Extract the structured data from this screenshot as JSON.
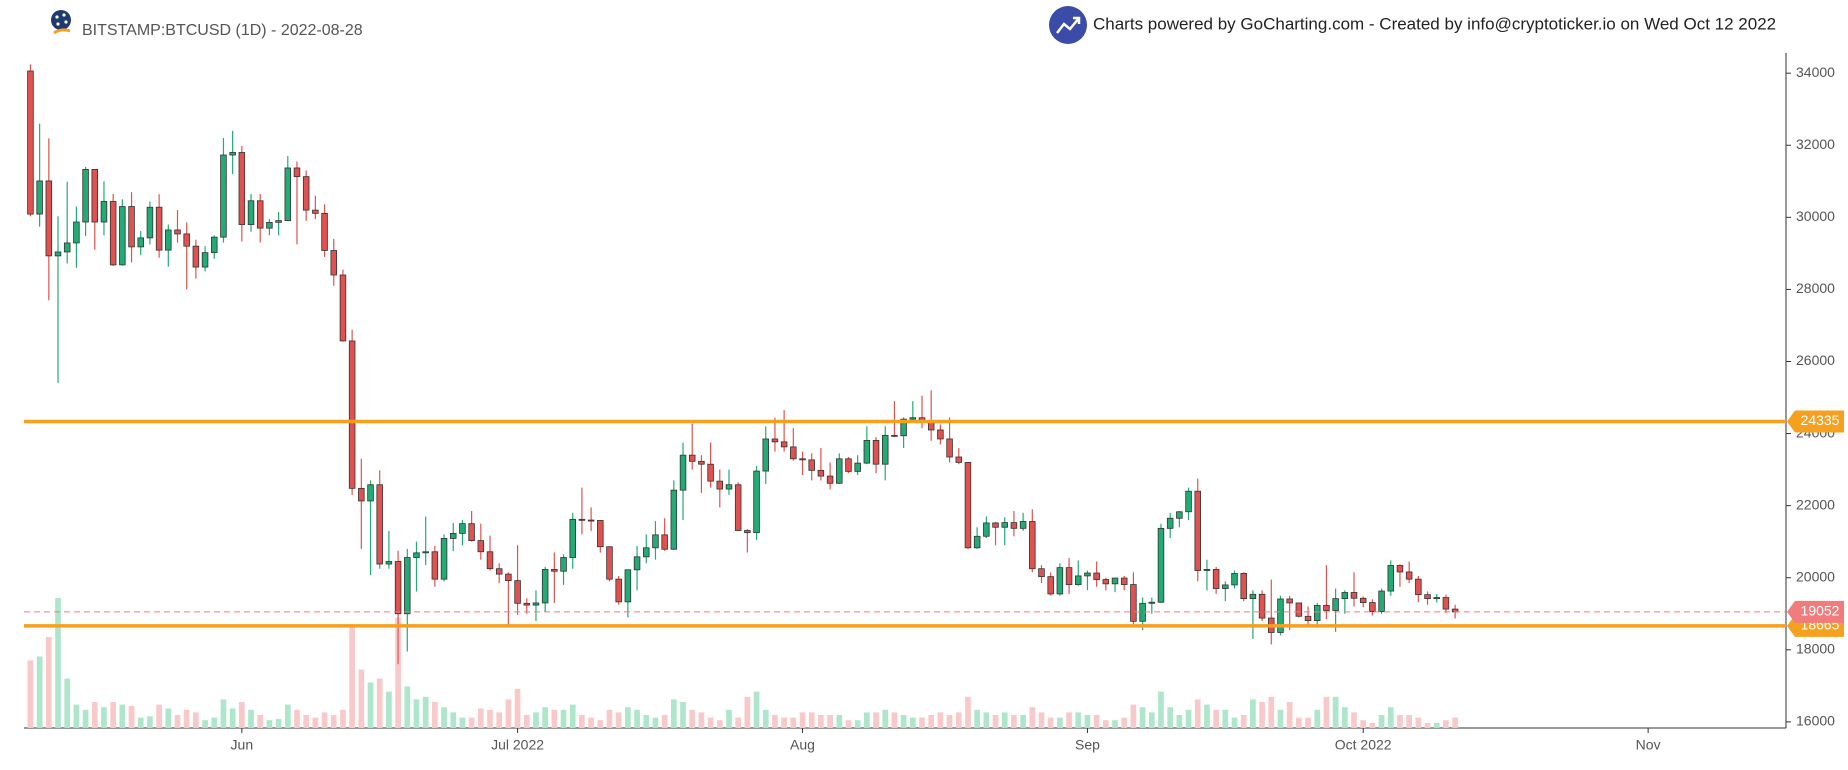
{
  "chart_data": {
    "type": "candlestick",
    "title": "BITSTAMP:BTCUSD (1D) - 2022-08-28",
    "subtitle": "Charts powered by GoCharting.com - Created by info@cryptoticker.io on Wed Oct 12 2022",
    "up_color": "#22ab74",
    "down_color": "#e0524f",
    "volume_up_color": "#aee6cc",
    "volume_down_color": "#f9c9c9",
    "xlim": [
      -0.7,
      191
    ],
    "xticks": [
      {
        "value": 23,
        "label": "Jun"
      },
      {
        "value": 53,
        "label": "Jul 2022"
      },
      {
        "value": 84,
        "label": "Aug"
      },
      {
        "value": 115,
        "label": "Sep"
      },
      {
        "value": 145,
        "label": "Oct 2022"
      },
      {
        "value": 176,
        "label": "Nov"
      }
    ],
    "ylim": [
      15830,
      34560
    ],
    "yticks": [
      16000,
      18000,
      20000,
      22000,
      24000,
      26000,
      28000,
      30000,
      32000,
      34000
    ],
    "hlines": [
      {
        "value": 24335,
        "color": "#f5a01f",
        "style": "solid"
      },
      {
        "value": 18665,
        "color": "#f5a01f",
        "style": "solid"
      },
      {
        "value": 19052,
        "color": "#f07c7c",
        "style": "dashed"
      }
    ],
    "open": [
      34060,
      30090,
      31010,
      28930,
      29040,
      29290,
      29870,
      31330,
      29870,
      30440,
      28680,
      30300,
      29180,
      29430,
      30280,
      29090,
      29650,
      29540,
      29200,
      28620,
      29020,
      29450,
      31730,
      31800,
      29800,
      30460,
      29700,
      29860,
      29910,
      31370,
      31130,
      30200,
      30110,
      29080,
      28400,
      26570,
      22480,
      22130,
      22580,
      20380,
      20450,
      19000,
      20560,
      20690,
      20720,
      19960,
      21090,
      21230,
      21500,
      21030,
      20720,
      20250,
      20100,
      19920,
      19290,
      19240,
      19300,
      20230,
      20180,
      20560,
      21620,
      21600,
      21590,
      20860,
      19960,
      19330,
      20220,
      20580,
      20830,
      21190,
      20790,
      22430,
      23400,
      23230,
      23150,
      22680,
      22460,
      22580,
      21310,
      21250,
      22960,
      23850,
      23770,
      23630,
      23300,
      23270,
      22980,
      22820,
      22620,
      23300,
      22950,
      23180,
      23810,
      23150,
      23950,
      23940,
      24400,
      24440,
      24310,
      24100,
      23850,
      23350,
      23200,
      20830,
      21150,
      21520,
      21400,
      21530,
      21370,
      21560,
      20250,
      20030,
      19550,
      20280,
      19810,
      20050,
      20130,
      19950,
      19830,
      19990,
      19810,
      18790,
      19290,
      19320,
      21370,
      21650,
      21830,
      22400,
      20200,
      20230,
      19700,
      19800,
      20120,
      19420,
      19540,
      18880,
      18480,
      19410,
      19300,
      18930,
      18810,
      19230,
      19090,
      19420,
      19590,
      19430,
      19310,
      19060,
      19630,
      20340,
      20160,
      19960,
      19530,
      19420,
      19450,
      19130
    ],
    "high": [
      34240,
      32600,
      32190,
      30030,
      30990,
      30300,
      31400,
      31330,
      31000,
      30650,
      30500,
      30700,
      29620,
      30440,
      30640,
      29800,
      30200,
      29860,
      29380,
      29200,
      29500,
      32200,
      32400,
      31980,
      30650,
      30650,
      29950,
      30150,
      31700,
      31550,
      31300,
      30600,
      30360,
      29400,
      28550,
      26880,
      23300,
      22700,
      22980,
      21300,
      20750,
      20800,
      21000,
      21700,
      20880,
      21200,
      21520,
      21600,
      21850,
      21500,
      21170,
      20400,
      20150,
      20900,
      19430,
      19650,
      20300,
      20700,
      20650,
      21800,
      22500,
      21950,
      21600,
      20870,
      20050,
      20230,
      20880,
      21200,
      21570,
      21650,
      22700,
      23750,
      24270,
      23400,
      23750,
      23000,
      23000,
      22650,
      21350,
      23100,
      24200,
      24440,
      24650,
      24150,
      23500,
      23450,
      23600,
      23200,
      23450,
      23350,
      23400,
      24200,
      23900,
      24200,
      24900,
      24450,
      24900,
      25050,
      25200,
      24250,
      24450,
      23600,
      23200,
      21400,
      21700,
      21550,
      21680,
      21850,
      21800,
      21900,
      20350,
      20150,
      20400,
      20550,
      20480,
      20200,
      20450,
      20000,
      20000,
      20050,
      20150,
      19450,
      19450,
      21500,
      21800,
      21850,
      22500,
      22750,
      20500,
      20300,
      19900,
      20200,
      20150,
      19650,
      19650,
      19950,
      19500,
      19500,
      19300,
      19200,
      19300,
      20350,
      19700,
      19650,
      20150,
      19480,
      19400,
      19700,
      20480,
      20370,
      20450,
      20050,
      19620,
      19550,
      19530,
      19250
    ],
    "low": [
      30030,
      29740,
      27700,
      25400,
      28720,
      28600,
      29480,
      29100,
      29500,
      28650,
      28660,
      28750,
      28950,
      29250,
      28880,
      28630,
      29300,
      28000,
      28300,
      28500,
      28850,
      29300,
      31200,
      29330,
      29600,
      29300,
      29500,
      29500,
      29900,
      29250,
      29900,
      29950,
      28900,
      28100,
      26550,
      22300,
      20800,
      20070,
      20250,
      20250,
      17600,
      17950,
      19620,
      20350,
      19750,
      19900,
      20740,
      20900,
      21000,
      20500,
      20200,
      19850,
      18650,
      18970,
      19000,
      18800,
      19050,
      19300,
      19800,
      20250,
      21200,
      21300,
      20700,
      19900,
      19250,
      18900,
      19650,
      20400,
      20500,
      20750,
      20770,
      21600,
      23000,
      22350,
      22500,
      21950,
      22300,
      21300,
      20700,
      21050,
      22600,
      23500,
      23500,
      23250,
      22850,
      22700,
      22700,
      22450,
      22600,
      22900,
      22850,
      23150,
      22900,
      22700,
      23900,
      23600,
      24300,
      24150,
      23800,
      23700,
      23200,
      23150,
      20800,
      20800,
      21100,
      20900,
      20900,
      21150,
      21300,
      20150,
      19850,
      19500,
      19500,
      19550,
      19780,
      19650,
      19750,
      19650,
      19600,
      19650,
      18700,
      18550,
      19000,
      19300,
      21100,
      21400,
      21600,
      19900,
      19650,
      19550,
      19350,
      19700,
      19350,
      18300,
      18800,
      18150,
      18400,
      18550,
      18900,
      18650,
      18700,
      18850,
      18500,
      19000,
      19200,
      19180,
      18950,
      19000,
      19500,
      19750,
      19850,
      19320,
      19250,
      19310,
      19020,
      18870
    ],
    "close": [
      30090,
      31010,
      28930,
      29040,
      29290,
      29870,
      31330,
      29870,
      30440,
      28680,
      30300,
      29180,
      29430,
      30280,
      29090,
      29650,
      29540,
      29200,
      28620,
      29020,
      29450,
      31730,
      31800,
      29800,
      30460,
      29700,
      29860,
      29910,
      31370,
      31130,
      30200,
      30110,
      29080,
      28400,
      26570,
      22480,
      22130,
      22580,
      20380,
      20450,
      19000,
      20560,
      20690,
      20720,
      19960,
      21090,
      21230,
      21500,
      21030,
      20720,
      20250,
      20100,
      19920,
      19290,
      19240,
      19300,
      20230,
      20180,
      20560,
      21620,
      21600,
      21590,
      20860,
      19960,
      19330,
      20220,
      20580,
      20830,
      21190,
      20790,
      22430,
      23400,
      23230,
      23150,
      22680,
      22460,
      22580,
      21310,
      21250,
      22960,
      23850,
      23770,
      23630,
      23300,
      23270,
      22980,
      22820,
      22620,
      23300,
      22950,
      23180,
      23810,
      23150,
      23950,
      23940,
      24400,
      24440,
      24310,
      24100,
      23850,
      23350,
      23200,
      20830,
      21150,
      21520,
      21400,
      21530,
      21370,
      21560,
      20250,
      20030,
      19550,
      20280,
      19810,
      20050,
      20130,
      19950,
      19830,
      19990,
      19810,
      18790,
      19290,
      19320,
      21370,
      21650,
      21830,
      22400,
      20200,
      20230,
      19700,
      19800,
      20120,
      19420,
      19540,
      18880,
      18480,
      19410,
      19300,
      18930,
      18810,
      19230,
      19090,
      19420,
      19590,
      19430,
      19310,
      19060,
      19630,
      20340,
      20160,
      19960,
      19530,
      19420,
      19450,
      19130,
      19052
    ],
    "volume": [
      52,
      55,
      70,
      100,
      38,
      18,
      14,
      20,
      16,
      20,
      18,
      17,
      8,
      9,
      18,
      15,
      10,
      14,
      12,
      6,
      8,
      22,
      15,
      20,
      14,
      10,
      6,
      7,
      18,
      14,
      10,
      8,
      12,
      10,
      14,
      78,
      45,
      35,
      38,
      28,
      85,
      32,
      22,
      24,
      20,
      16,
      12,
      8,
      8,
      15,
      14,
      12,
      22,
      30,
      10,
      12,
      16,
      14,
      14,
      18,
      10,
      8,
      6,
      14,
      12,
      16,
      14,
      10,
      8,
      10,
      22,
      20,
      14,
      12,
      8,
      6,
      14,
      8,
      24,
      28,
      14,
      10,
      8,
      8,
      12,
      12,
      10,
      10,
      10,
      6,
      6,
      12,
      12,
      14,
      12,
      10,
      8,
      8,
      10,
      12,
      10,
      12,
      24,
      14,
      12,
      10,
      12,
      10,
      10,
      16,
      12,
      8,
      8,
      12,
      12,
      10,
      10,
      6,
      6,
      8,
      18,
      16,
      12,
      28,
      16,
      10,
      14,
      22,
      18,
      14,
      14,
      8,
      10,
      22,
      20,
      24,
      14,
      20,
      8,
      8,
      14,
      24,
      24,
      16,
      12,
      6,
      4,
      10,
      16,
      10,
      10,
      8,
      4,
      4,
      6,
      8
    ]
  }
}
